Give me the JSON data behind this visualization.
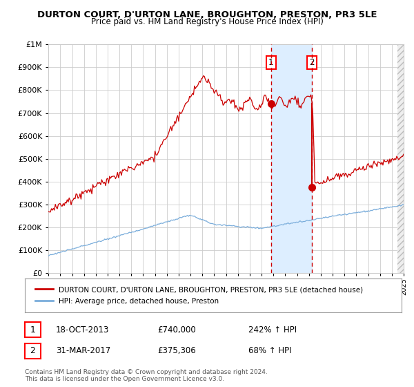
{
  "title": "DURTON COURT, D'URTON LANE, BROUGHTON, PRESTON, PR3 5LE",
  "subtitle": "Price paid vs. HM Land Registry's House Price Index (HPI)",
  "legend_label_red": "DURTON COURT, D'URTON LANE, BROUGHTON, PRESTON, PR3 5LE (detached house)",
  "legend_label_blue": "HPI: Average price, detached house, Preston",
  "annotation1_date": "18-OCT-2013",
  "annotation1_price": "£740,000",
  "annotation1_hpi": "242% ↑ HPI",
  "annotation2_date": "31-MAR-2017",
  "annotation2_price": "£375,306",
  "annotation2_hpi": "68% ↑ HPI",
  "footer": "Contains HM Land Registry data © Crown copyright and database right 2024.\nThis data is licensed under the Open Government Licence v3.0.",
  "point1_x": 2013.8,
  "point1_y": 740000,
  "point2_x": 2017.25,
  "point2_y": 375306,
  "vline1_x": 2013.8,
  "vline2_x": 2017.25,
  "shade_x1": 2013.8,
  "shade_x2": 2017.25,
  "ylim": [
    0,
    1000000
  ],
  "xlim_start": 1995,
  "xlim_end": 2025,
  "hatch_x_start": 2024.5,
  "red_color": "#cc0000",
  "blue_color": "#7aaddb",
  "shade_color": "#ddeeff",
  "grid_color": "#cccccc",
  "bg_color": "#ffffff"
}
